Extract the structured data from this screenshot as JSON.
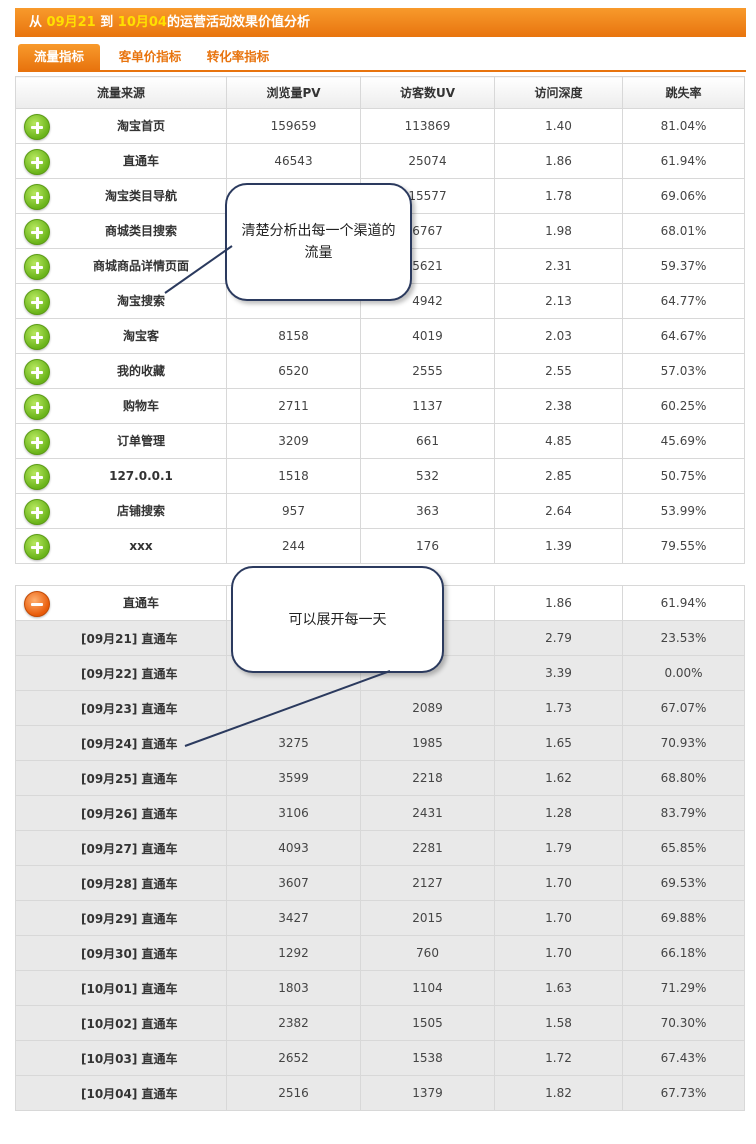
{
  "header": {
    "prefix": "从 ",
    "start_date": "09月21",
    "mid": " 到 ",
    "end_date": "10月04",
    "suffix": "的运营活动效果价值分析"
  },
  "tabs": [
    "流量指标",
    "客单价指标",
    "转化率指标"
  ],
  "columns": [
    "流量来源",
    "浏览量PV",
    "访客数UV",
    "访问深度",
    "跳失率"
  ],
  "traffic_rows": [
    {
      "source": "淘宝首页",
      "pv": "159659",
      "uv": "113869",
      "depth": "1.40",
      "bounce": "81.04%"
    },
    {
      "source": "直通车",
      "pv": "46543",
      "uv": "25074",
      "depth": "1.86",
      "bounce": "61.94%"
    },
    {
      "source": "淘宝类目导航",
      "pv": "",
      "uv": "15577",
      "depth": "1.78",
      "bounce": "69.06%"
    },
    {
      "source": "商城类目搜索",
      "pv": "",
      "uv": "6767",
      "depth": "1.98",
      "bounce": "68.01%"
    },
    {
      "source": "商城商品详情页面",
      "pv": "",
      "uv": "5621",
      "depth": "2.31",
      "bounce": "59.37%"
    },
    {
      "source": "淘宝搜索",
      "pv": "",
      "uv": "4942",
      "depth": "2.13",
      "bounce": "64.77%"
    },
    {
      "source": "淘宝客",
      "pv": "8158",
      "uv": "4019",
      "depth": "2.03",
      "bounce": "64.67%"
    },
    {
      "source": "我的收藏",
      "pv": "6520",
      "uv": "2555",
      "depth": "2.55",
      "bounce": "57.03%"
    },
    {
      "source": "购物车",
      "pv": "2711",
      "uv": "1137",
      "depth": "2.38",
      "bounce": "60.25%"
    },
    {
      "source": "订单管理",
      "pv": "3209",
      "uv": "661",
      "depth": "4.85",
      "bounce": "45.69%"
    },
    {
      "source": "127.0.0.1",
      "pv": "1518",
      "uv": "532",
      "depth": "2.85",
      "bounce": "50.75%"
    },
    {
      "source": "店铺搜索",
      "pv": "957",
      "uv": "363",
      "depth": "2.64",
      "bounce": "53.99%"
    },
    {
      "source": "xxx",
      "pv": "244",
      "uv": "176",
      "depth": "1.39",
      "bounce": "79.55%"
    }
  ],
  "expanded_row": {
    "source": "直通车",
    "pv": "",
    "uv": "",
    "depth": "1.86",
    "bounce": "61.94%"
  },
  "daily_rows": [
    {
      "source": "[09月21] 直通车",
      "pv": "",
      "uv": "",
      "depth": "2.79",
      "bounce": "23.53%"
    },
    {
      "source": "[09月22] 直通车",
      "pv": "",
      "uv": "",
      "depth": "3.39",
      "bounce": "0.00%"
    },
    {
      "source": "[09月23] 直通车",
      "pv": "",
      "uv": "2089",
      "depth": "1.73",
      "bounce": "67.07%"
    },
    {
      "source": "[09月24] 直通车",
      "pv": "3275",
      "uv": "1985",
      "depth": "1.65",
      "bounce": "70.93%"
    },
    {
      "source": "[09月25] 直通车",
      "pv": "3599",
      "uv": "2218",
      "depth": "1.62",
      "bounce": "68.80%"
    },
    {
      "source": "[09月26] 直通车",
      "pv": "3106",
      "uv": "2431",
      "depth": "1.28",
      "bounce": "83.79%"
    },
    {
      "source": "[09月27] 直通车",
      "pv": "4093",
      "uv": "2281",
      "depth": "1.79",
      "bounce": "65.85%"
    },
    {
      "source": "[09月28] 直通车",
      "pv": "3607",
      "uv": "2127",
      "depth": "1.70",
      "bounce": "69.53%"
    },
    {
      "source": "[09月29] 直通车",
      "pv": "3427",
      "uv": "2015",
      "depth": "1.70",
      "bounce": "69.88%"
    },
    {
      "source": "[09月30] 直通车",
      "pv": "1292",
      "uv": "760",
      "depth": "1.70",
      "bounce": "66.18%"
    },
    {
      "source": "[10月01] 直通车",
      "pv": "1803",
      "uv": "1104",
      "depth": "1.63",
      "bounce": "71.29%"
    },
    {
      "source": "[10月02] 直通车",
      "pv": "2382",
      "uv": "1505",
      "depth": "1.58",
      "bounce": "70.30%"
    },
    {
      "source": "[10月03] 直通车",
      "pv": "2652",
      "uv": "1538",
      "depth": "1.72",
      "bounce": "67.43%"
    },
    {
      "source": "[10月04] 直通车",
      "pv": "2516",
      "uv": "1379",
      "depth": "1.82",
      "bounce": "67.73%"
    }
  ],
  "callouts": {
    "channel": "清楚分析出每一个渠道的流量",
    "daily": "可以展开每一天"
  },
  "colors": {
    "accent": "#e8740e",
    "plus_green": "#6ab41a",
    "minus_orange": "#e85a08",
    "callout_border": "#2b3a5e"
  }
}
